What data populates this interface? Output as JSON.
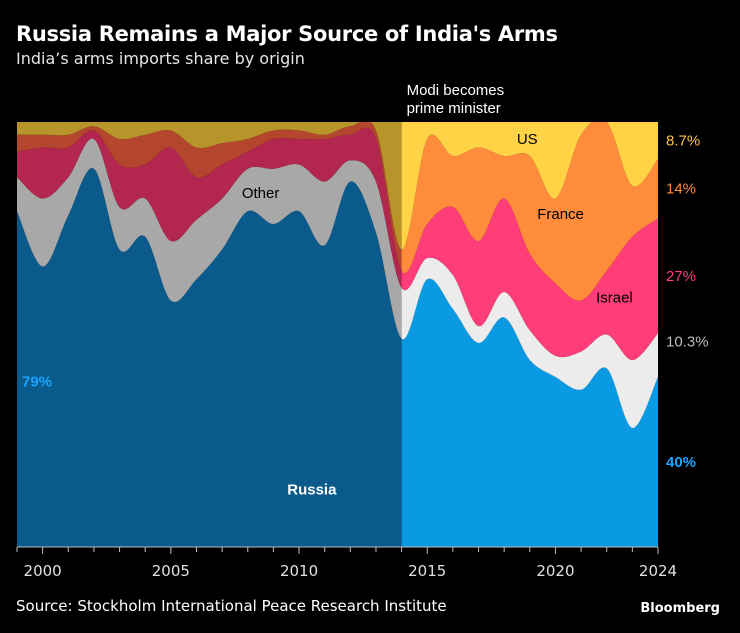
{
  "title": "Russia Remains a Major Source of India's Arms",
  "subtitle": "India’s arms imports share by origin",
  "source": "Source: Stockholm International Peace Research Institute",
  "brand": "Bloomberg",
  "annotation": {
    "line1": "Modi becomes",
    "line2": "prime minister",
    "year": 2014
  },
  "colors": {
    "pre": {
      "Russia": "#0a5b8c",
      "Other": "#a8a8a8",
      "Israel": "#b22650",
      "France": "#b5462e",
      "US": "#b8952a"
    },
    "post": {
      "Russia": "#0a9ae3",
      "Other": "#ececec",
      "Israel": "#ff3d78",
      "France": "#ff8c3b",
      "US": "#ffd345"
    }
  },
  "chart_data": {
    "type": "area",
    "stacked": true,
    "normalized": true,
    "x": [
      1999,
      2000,
      2001,
      2002,
      2003,
      2004,
      2005,
      2006,
      2007,
      2008,
      2009,
      2010,
      2011,
      2012,
      2013,
      2014,
      2015,
      2016,
      2017,
      2018,
      2019,
      2020,
      2021,
      2022,
      2023,
      2024
    ],
    "series": [
      {
        "name": "Russia",
        "values": [
          79,
          66,
          78,
          89,
          70,
          73,
          58,
          63,
          70,
          79,
          76,
          79,
          71,
          86,
          74,
          49,
          63,
          56,
          48,
          54,
          44,
          40,
          37,
          42,
          28,
          40
        ]
      },
      {
        "name": "Other",
        "values": [
          8,
          16,
          9,
          7,
          10,
          9,
          14,
          14,
          12,
          10,
          13,
          11,
          15,
          5,
          12,
          12,
          5,
          8,
          4,
          6,
          7,
          5,
          9,
          8,
          16,
          10.3
        ]
      },
      {
        "name": "Israel",
        "values": [
          6,
          12,
          7,
          2,
          10,
          8,
          22,
          10,
          8,
          4,
          7,
          6,
          10,
          6,
          10,
          4,
          8,
          16,
          20,
          22,
          18,
          17,
          12,
          15,
          29,
          27
        ]
      },
      {
        "name": "France",
        "values": [
          4,
          3,
          3,
          1,
          6,
          7,
          4,
          7,
          5,
          3,
          2,
          2,
          1,
          2,
          2,
          5,
          20,
          12,
          22,
          10,
          23,
          20,
          39,
          35,
          12,
          14
        ]
      },
      {
        "name": "US",
        "values": [
          3,
          3,
          3,
          1,
          4,
          3,
          2,
          6,
          5,
          4,
          2,
          2,
          3,
          1,
          2,
          30,
          4,
          8,
          6,
          8,
          8,
          18,
          3,
          0,
          15,
          8.7
        ]
      }
    ],
    "series_labels": {
      "Russia": "Russia",
      "Other": "Other",
      "France": "France",
      "US": "US",
      "Israel": "Israel"
    },
    "ylim": [
      0,
      100
    ],
    "x_ticks": [
      "2000",
      "2005",
      "2010",
      "2015",
      "2020",
      "2024"
    ],
    "end_labels": [
      {
        "series": "US",
        "text": "8.7%",
        "color": "#ffc44d"
      },
      {
        "series": "France",
        "text": "14%",
        "color": "#ff8c3b"
      },
      {
        "series": "Israel",
        "text": "27%",
        "color": "#ff3d78"
      },
      {
        "series": "Other",
        "text": "10.3%",
        "color": "#bdbdbd"
      },
      {
        "series": "Russia",
        "text": "40%",
        "color": "#1aa3ff"
      }
    ],
    "start_labels": [
      {
        "series": "Russia",
        "text": "79%",
        "color": "#1aa3ff"
      }
    ]
  }
}
